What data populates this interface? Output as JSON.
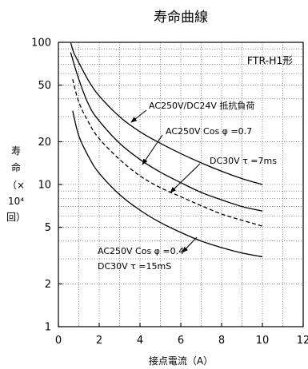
{
  "chart_data": {
    "type": "line",
    "title": "寿命曲線",
    "xlabel": "接点電流（A）",
    "ylabel": "寿命（×10⁴回）",
    "ylabel_chars": [
      "寿",
      "命",
      "（×",
      "10⁴",
      "回）"
    ],
    "xlim": [
      0,
      12
    ],
    "ylim": [
      1,
      100
    ],
    "yscale": "log",
    "xticks": [
      0,
      2,
      4,
      6,
      8,
      10,
      12
    ],
    "xtick_labels": [
      "0",
      "2",
      "4",
      "6",
      "8",
      "10",
      "12"
    ],
    "yticks": [
      1,
      2,
      5,
      10,
      20,
      50,
      100
    ],
    "ytick_labels": [
      "1",
      "2",
      "5",
      "10",
      "20",
      "50",
      "100"
    ],
    "grid": true,
    "model_label": "FTR-H1形",
    "series": [
      {
        "name": "AC250V/DC24V 抵抗負荷",
        "style": "solid",
        "x": [
          0.6,
          0.75,
          1,
          1.5,
          2,
          3,
          4,
          5,
          6,
          7,
          8,
          9,
          10
        ],
        "y": [
          100,
          85,
          72,
          53,
          42,
          30,
          23.5,
          19.5,
          16.5,
          14.2,
          12.4,
          11,
          10
        ]
      },
      {
        "name": "AC250V Cos φ =0.7",
        "style": "solid",
        "x": [
          0.6,
          1,
          1.5,
          2,
          3,
          4,
          5,
          6,
          7,
          8,
          9,
          10
        ],
        "y": [
          85,
          55,
          36,
          28,
          19.5,
          15,
          12.2,
          10.3,
          8.8,
          7.8,
          7,
          6.5
        ]
      },
      {
        "name": "DC30V τ =7ms",
        "style": "dashed",
        "x": [
          0.7,
          1,
          1.5,
          2,
          3,
          4,
          5,
          6,
          7,
          8,
          9,
          10
        ],
        "y": [
          55,
          38,
          27,
          21,
          15,
          11.5,
          9.5,
          8.2,
          7.1,
          6.2,
          5.6,
          5.1
        ]
      },
      {
        "name": "AC250V Cos φ =0.4 / DC30V τ =15mS",
        "style": "solid",
        "x": [
          0.7,
          1,
          1.5,
          2,
          3,
          4,
          5,
          6,
          7,
          8,
          9,
          10
        ],
        "y": [
          33,
          22,
          15.5,
          12,
          8.5,
          6.6,
          5.4,
          4.6,
          4,
          3.6,
          3.3,
          3.1
        ]
      }
    ],
    "annotations": [
      {
        "text": "AC250V/DC24V 抵抗負荷"
      },
      {
        "text": "AC250V Cos φ =0.7"
      },
      {
        "text": "DC30V τ =7ms"
      },
      {
        "text": "AC250V Cos φ =0.4"
      },
      {
        "text": "DC30V τ =15mS"
      }
    ]
  }
}
